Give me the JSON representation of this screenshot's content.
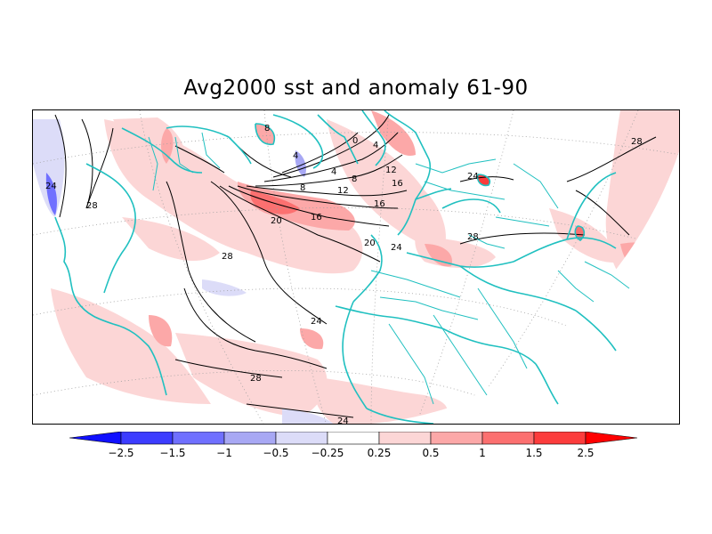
{
  "title": "Avg2000 sst and anomaly 61-90",
  "colors": {
    "coastline": "#20c0c0",
    "contour": "#000000",
    "grid": "#a0a0a0"
  },
  "colorbar": {
    "levels": [
      "-2.5",
      "-1.5",
      "-1",
      "-0.5",
      "-0.25",
      "0.25",
      "0.5",
      "1",
      "1.5",
      "2.5"
    ],
    "colors": [
      "#1010ff",
      "#3c3cff",
      "#7070ff",
      "#a8a8f4",
      "#dcdcf8",
      "#ffffff",
      "#fcd6d6",
      "#fca8a8",
      "#fc7070",
      "#fc3c3c",
      "#ff0000"
    ]
  },
  "contour_labels": [
    "24",
    "28",
    "28",
    "20",
    "16",
    "12",
    "8",
    "4",
    "0",
    "4",
    "8",
    "12",
    "16",
    "16",
    "20",
    "24",
    "28",
    "24",
    "28",
    "28",
    "24",
    "4",
    "8",
    "24"
  ]
}
